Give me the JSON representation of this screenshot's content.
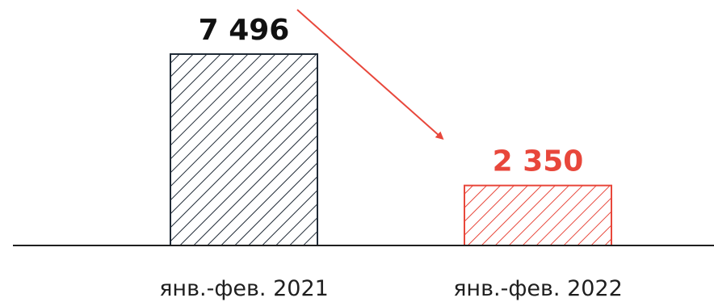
{
  "chart_data": {
    "type": "bar",
    "title": "",
    "xlabel": "",
    "ylabel": "",
    "categories": [
      "янв.-фев. 2021",
      "янв.-фев. 2022"
    ],
    "values": [
      7496,
      2350
    ],
    "value_labels": [
      "7 496",
      "2 350"
    ],
    "ylim": [
      0,
      7496
    ],
    "grid": false,
    "legend": "none",
    "bar_fill": "diagonal-hatch",
    "colors": [
      "#1f2a36",
      "#e8473b"
    ],
    "annotation": {
      "type": "arrow",
      "from_category": "янв.-фев. 2021",
      "to_category": "янв.-фев. 2022",
      "color": "#e8473b"
    }
  }
}
